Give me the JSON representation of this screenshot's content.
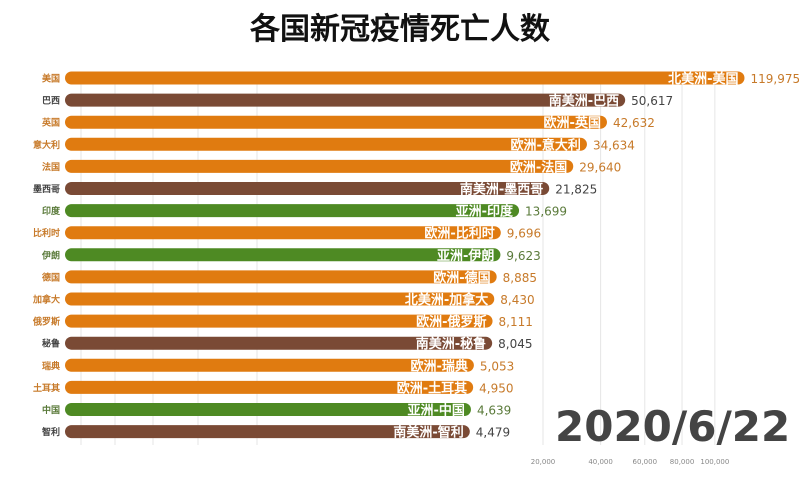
{
  "chart_data": {
    "type": "bar",
    "title": "各国新冠疫情死亡人数",
    "date": "2020/6/22",
    "scale": "sqrt",
    "grid": true,
    "xticks": [
      {
        "value": 20000,
        "label": "20,000"
      },
      {
        "value": 40000,
        "label": "40,000"
      },
      {
        "value": 60000,
        "label": "60,000"
      },
      {
        "value": 80000,
        "label": "80,000"
      },
      {
        "value": 100000,
        "label": "100,000"
      }
    ],
    "colors": {
      "北美洲": "#e07b10",
      "南美洲": "#7a4a35",
      "欧洲": "#e07b10",
      "亚洲": "#4e8a23"
    },
    "value_colors": {
      "北美洲": "#c77a2a",
      "南美洲": "#444444",
      "欧洲": "#c77a2a",
      "亚洲": "#5a7a3a"
    },
    "rows": [
      {
        "country": "美国",
        "label": "北美洲-美国",
        "continent": "北美洲",
        "value": 119975,
        "value_label": "119,975"
      },
      {
        "country": "巴西",
        "label": "南美洲-巴西",
        "continent": "南美洲",
        "value": 50617,
        "value_label": "50,617"
      },
      {
        "country": "英国",
        "label": "欧洲-英国",
        "continent": "欧洲",
        "value": 42632,
        "value_label": "42,632"
      },
      {
        "country": "意大利",
        "label": "欧洲-意大利",
        "continent": "欧洲",
        "value": 34634,
        "value_label": "34,634"
      },
      {
        "country": "法国",
        "label": "欧洲-法国",
        "continent": "欧洲",
        "value": 29640,
        "value_label": "29,640"
      },
      {
        "country": "墨西哥",
        "label": "南美洲-墨西哥",
        "continent": "南美洲",
        "value": 21825,
        "value_label": "21,825"
      },
      {
        "country": "印度",
        "label": "亚洲-印度",
        "continent": "亚洲",
        "value": 13699,
        "value_label": "13,699"
      },
      {
        "country": "比利时",
        "label": "欧洲-比利时",
        "continent": "欧洲",
        "value": 9696,
        "value_label": "9,696"
      },
      {
        "country": "伊朗",
        "label": "亚洲-伊朗",
        "continent": "亚洲",
        "value": 9623,
        "value_label": "9,623"
      },
      {
        "country": "德国",
        "label": "欧洲-德国",
        "continent": "欧洲",
        "value": 8885,
        "value_label": "8,885"
      },
      {
        "country": "加拿大",
        "label": "北美洲-加拿大",
        "continent": "北美洲",
        "value": 8430,
        "value_label": "8,430"
      },
      {
        "country": "俄罗斯",
        "label": "欧洲-俄罗斯",
        "continent": "欧洲",
        "value": 8111,
        "value_label": "8,111"
      },
      {
        "country": "秘鲁",
        "label": "南美洲-秘鲁",
        "continent": "南美洲",
        "value": 8045,
        "value_label": "8,045"
      },
      {
        "country": "瑞典",
        "label": "欧洲-瑞典",
        "continent": "欧洲",
        "value": 5053,
        "value_label": "5,053"
      },
      {
        "country": "土耳其",
        "label": "欧洲-土耳其",
        "continent": "欧洲",
        "value": 4950,
        "value_label": "4,950"
      },
      {
        "country": "中国",
        "label": "亚洲-中国",
        "continent": "亚洲",
        "value": 4639,
        "value_label": "4,639"
      },
      {
        "country": "智利",
        "label": "南美洲-智利",
        "continent": "南美洲",
        "value": 4479,
        "value_label": "4,479"
      }
    ]
  }
}
